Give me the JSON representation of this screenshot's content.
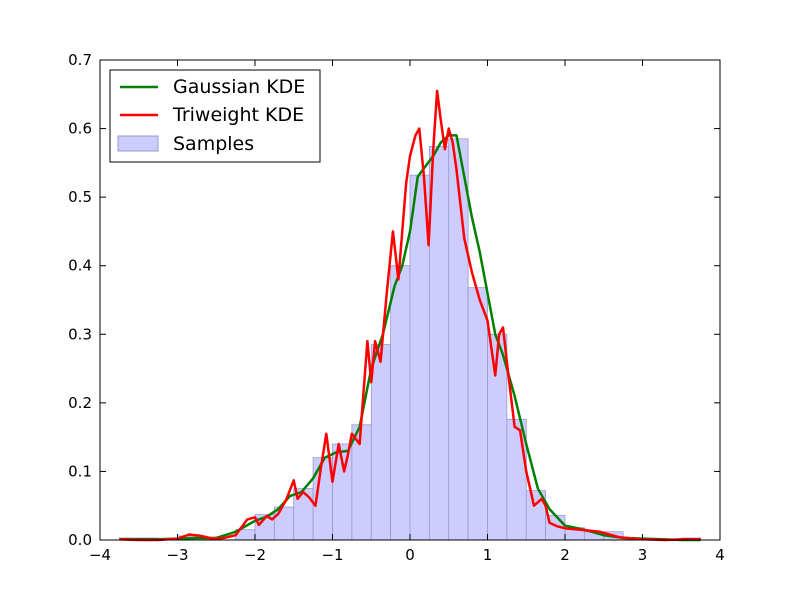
{
  "chart_data": {
    "type": "histogram+line",
    "xlim": [
      -4,
      4
    ],
    "ylim": [
      0,
      0.7
    ],
    "grid": false,
    "legend_position": "top-left",
    "x_ticks": [
      -4,
      -3,
      -2,
      -1,
      0,
      1,
      2,
      3,
      4
    ],
    "y_ticks": [
      0.0,
      0.1,
      0.2,
      0.3,
      0.4,
      0.5,
      0.6,
      0.7
    ],
    "x_tick_labels": [
      "−4",
      "−3",
      "−2",
      "−1",
      "0",
      "1",
      "2",
      "3",
      "4"
    ],
    "y_tick_labels": [
      "0.0",
      "0.1",
      "0.2",
      "0.3",
      "0.4",
      "0.5",
      "0.6",
      "0.7"
    ],
    "histogram": {
      "name": "Samples",
      "color": "#ccccff",
      "edge_color": "#9999cc",
      "bin_edges": [
        -3.75,
        -3.5,
        -3.25,
        -3.0,
        -2.75,
        -2.5,
        -2.25,
        -2.0,
        -1.75,
        -1.5,
        -1.25,
        -1.0,
        -0.75,
        -0.5,
        -0.25,
        0.0,
        0.25,
        0.5,
        0.75,
        1.0,
        1.25,
        1.5,
        1.75,
        2.0,
        2.25,
        2.5,
        2.75,
        3.0,
        3.25,
        3.5,
        3.75
      ],
      "values": [
        0.003,
        0.003,
        0.0,
        0.006,
        0.004,
        0.0,
        0.015,
        0.037,
        0.048,
        0.075,
        0.12,
        0.14,
        0.168,
        0.285,
        0.4,
        0.532,
        0.574,
        0.585,
        0.368,
        0.3,
        0.176,
        0.072,
        0.036,
        0.018,
        0.012,
        0.012,
        0.0,
        0.0,
        0.0,
        0.003
      ]
    },
    "series": [
      {
        "name": "Gaussian KDE",
        "color": "#008000",
        "x": [
          -3.75,
          -3.5,
          -3.25,
          -3.0,
          -2.75,
          -2.5,
          -2.25,
          -2.0,
          -1.85,
          -1.7,
          -1.55,
          -1.4,
          -1.25,
          -1.1,
          -0.95,
          -0.8,
          -0.65,
          -0.5,
          -0.35,
          -0.2,
          -0.1,
          0.0,
          0.1,
          0.2,
          0.3,
          0.4,
          0.5,
          0.6,
          0.7,
          0.8,
          0.9,
          1.0,
          1.1,
          1.2,
          1.35,
          1.5,
          1.65,
          1.8,
          2.0,
          2.25,
          2.5,
          2.75,
          3.0,
          3.25,
          3.5,
          3.75
        ],
        "y": [
          0.001,
          0.001,
          0.001,
          0.002,
          0.003,
          0.003,
          0.012,
          0.028,
          0.034,
          0.045,
          0.064,
          0.07,
          0.09,
          0.12,
          0.128,
          0.13,
          0.165,
          0.25,
          0.3,
          0.37,
          0.4,
          0.45,
          0.53,
          0.545,
          0.56,
          0.58,
          0.59,
          0.59,
          0.53,
          0.47,
          0.42,
          0.36,
          0.3,
          0.27,
          0.21,
          0.14,
          0.075,
          0.045,
          0.021,
          0.015,
          0.007,
          0.003,
          0.002,
          0.001,
          0.0,
          0.0
        ]
      },
      {
        "name": "Triweight KDE",
        "color": "#ff0000",
        "x": [
          -3.75,
          -3.5,
          -3.25,
          -3.0,
          -2.85,
          -2.7,
          -2.55,
          -2.4,
          -2.25,
          -2.1,
          -2.0,
          -1.95,
          -1.85,
          -1.78,
          -1.7,
          -1.6,
          -1.5,
          -1.45,
          -1.38,
          -1.3,
          -1.22,
          -1.15,
          -1.08,
          -1.0,
          -0.92,
          -0.85,
          -0.8,
          -0.75,
          -0.65,
          -0.55,
          -0.5,
          -0.45,
          -0.38,
          -0.3,
          -0.22,
          -0.15,
          -0.1,
          -0.05,
          0.0,
          0.07,
          0.12,
          0.18,
          0.24,
          0.3,
          0.35,
          0.4,
          0.45,
          0.5,
          0.55,
          0.6,
          0.7,
          0.8,
          0.9,
          1.0,
          1.1,
          1.15,
          1.2,
          1.27,
          1.35,
          1.42,
          1.5,
          1.6,
          1.7,
          1.75,
          1.8,
          1.9,
          2.0,
          2.2,
          2.45,
          2.7,
          3.0,
          3.3,
          3.55,
          3.75
        ],
        "y": [
          0.001,
          0.0,
          0.0,
          0.002,
          0.008,
          0.006,
          0.002,
          0.003,
          0.007,
          0.03,
          0.033,
          0.022,
          0.035,
          0.03,
          0.038,
          0.058,
          0.087,
          0.06,
          0.07,
          0.062,
          0.05,
          0.105,
          0.155,
          0.085,
          0.14,
          0.1,
          0.125,
          0.155,
          0.14,
          0.29,
          0.23,
          0.29,
          0.26,
          0.36,
          0.45,
          0.38,
          0.45,
          0.52,
          0.56,
          0.59,
          0.6,
          0.53,
          0.43,
          0.57,
          0.655,
          0.61,
          0.57,
          0.6,
          0.58,
          0.54,
          0.44,
          0.39,
          0.35,
          0.32,
          0.24,
          0.3,
          0.31,
          0.24,
          0.165,
          0.16,
          0.1,
          0.05,
          0.06,
          0.05,
          0.025,
          0.02,
          0.017,
          0.015,
          0.012,
          0.004,
          0.001,
          0.0,
          0.001,
          0.001
        ]
      }
    ],
    "legend": {
      "items": [
        {
          "label": "Gaussian KDE",
          "kind": "line",
          "color": "#008000"
        },
        {
          "label": "Triweight KDE",
          "kind": "line",
          "color": "#ff0000"
        },
        {
          "label": "Samples",
          "kind": "patch",
          "color": "#ccccff"
        }
      ]
    }
  }
}
